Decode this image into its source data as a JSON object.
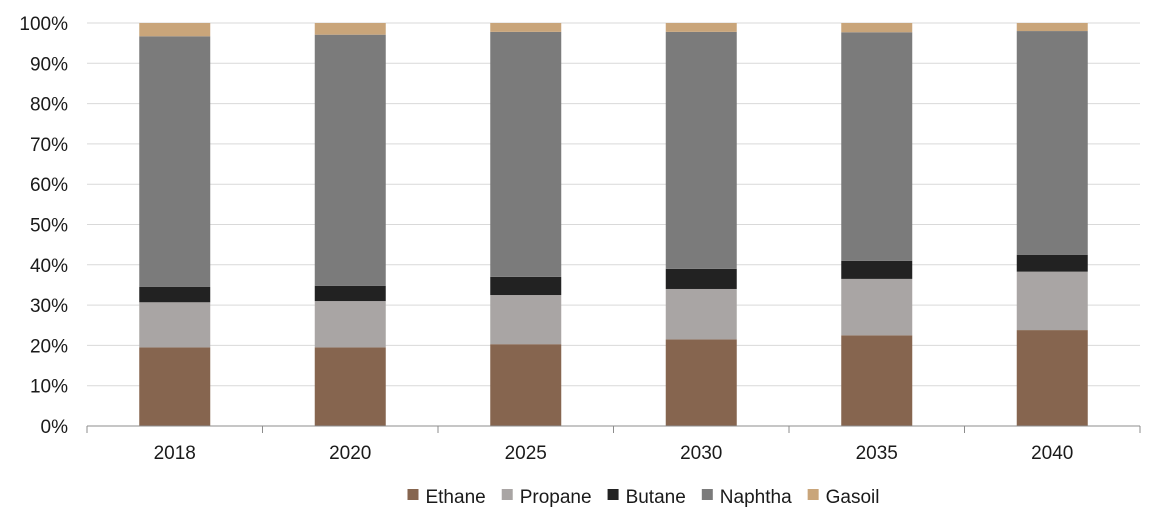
{
  "chart_data": {
    "type": "bar",
    "stacked": true,
    "categories": [
      "2018",
      "2020",
      "2025",
      "2030",
      "2035",
      "2040"
    ],
    "ylim": [
      0,
      100
    ],
    "y_ticks": [
      "0%",
      "10%",
      "20%",
      "30%",
      "40%",
      "50%",
      "60%",
      "70%",
      "80%",
      "90%",
      "100%"
    ],
    "grid": true,
    "legend_position": "bottom",
    "series": [
      {
        "name": "Ethane",
        "color": "#86654f",
        "values": [
          19.5,
          19.5,
          20.3,
          21.5,
          22.5,
          23.8
        ]
      },
      {
        "name": "Propane",
        "color": "#a9a5a4",
        "values": [
          11.2,
          11.5,
          12.2,
          12.5,
          14.0,
          14.5
        ]
      },
      {
        "name": "Butane",
        "color": "#222222",
        "values": [
          3.8,
          3.8,
          4.5,
          5.0,
          4.5,
          4.2
        ]
      },
      {
        "name": "Naphtha",
        "color": "#7b7b7b",
        "values": [
          62.2,
          62.3,
          60.8,
          58.8,
          56.7,
          55.5
        ]
      },
      {
        "name": "Gasoil",
        "color": "#c9a57a",
        "values": [
          3.3,
          2.9,
          2.2,
          2.2,
          2.3,
          2.0
        ]
      }
    ]
  }
}
